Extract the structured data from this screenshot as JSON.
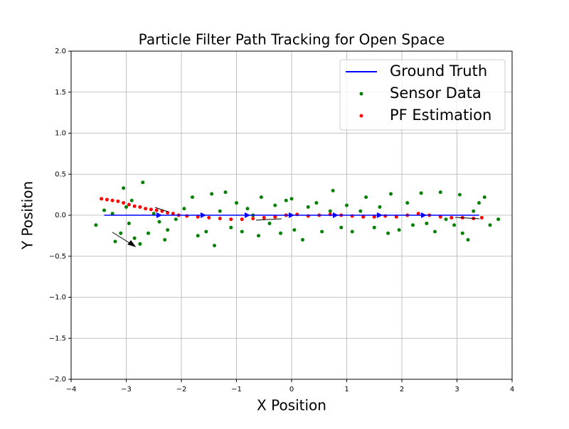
{
  "chart_data": {
    "type": "scatter",
    "title": "Particle Filter Path Tracking for Open Space",
    "x_label": "X Position",
    "y_label": "Y Position",
    "xlim": [
      -4,
      4
    ],
    "ylim": [
      -2,
      2
    ],
    "xticks": [
      {
        "value": -4,
        "label": "−4"
      },
      {
        "value": -3,
        "label": "−3"
      },
      {
        "value": -2,
        "label": "−2"
      },
      {
        "value": -1,
        "label": "−1"
      },
      0,
      1,
      2,
      3,
      4
    ],
    "yticks": [
      {
        "value": -2,
        "label": "−2.0"
      },
      {
        "value": -1.5,
        "label": "−1.5"
      },
      {
        "value": -1,
        "label": "−1.0"
      },
      {
        "value": -0.5,
        "label": "−0.5"
      },
      {
        "value": 0,
        "label": "0.0"
      },
      {
        "value": 0.5,
        "label": "0.5"
      },
      {
        "value": 1,
        "label": "1.0"
      },
      {
        "value": 1.5,
        "label": "1.5"
      },
      {
        "value": 2,
        "label": "2.0"
      }
    ],
    "grid": true,
    "legend": "upper right",
    "series": [
      {
        "name": "Ground Truth",
        "type": "line",
        "color": "#0000ff",
        "x": [
          -3.4,
          -2.4,
          -1.6,
          -0.8,
          0,
          0.8,
          1.6,
          2.4,
          3.4
        ],
        "values": [
          0,
          0,
          0,
          0,
          0,
          0,
          0,
          0,
          0
        ]
      },
      {
        "name": "Sensor Data",
        "type": "scatter",
        "color": "#008000",
        "x": [
          -3.55,
          -3.4,
          -3.25,
          -3.2,
          -3.1,
          -3.05,
          -3.0,
          -2.95,
          -2.9,
          -2.85,
          -2.75,
          -2.7,
          -2.6,
          -2.5,
          -2.4,
          -2.3,
          -2.25,
          -2.1,
          -1.95,
          -1.8,
          -1.7,
          -1.55,
          -1.45,
          -1.4,
          -1.3,
          -1.2,
          -1.1,
          -1.0,
          -0.9,
          -0.8,
          -0.7,
          -0.6,
          -0.55,
          -0.4,
          -0.3,
          -0.2,
          -0.1,
          0.0,
          0.05,
          0.2,
          0.3,
          0.45,
          0.55,
          0.7,
          0.75,
          0.9,
          1.0,
          1.1,
          1.25,
          1.35,
          1.5,
          1.6,
          1.75,
          1.8,
          1.95,
          2.1,
          2.2,
          2.35,
          2.45,
          2.6,
          2.7,
          2.8,
          2.95,
          3.05,
          3.1,
          3.2,
          3.3,
          3.4,
          3.5,
          3.6,
          3.75
        ],
        "values": [
          -0.12,
          0.06,
          0.02,
          -0.32,
          -0.22,
          0.33,
          0.1,
          -0.1,
          0.18,
          -0.28,
          -0.35,
          0.4,
          -0.22,
          0.02,
          -0.08,
          -0.3,
          -0.18,
          -0.05,
          0.08,
          0.22,
          -0.25,
          -0.2,
          0.26,
          -0.37,
          0.05,
          0.28,
          -0.15,
          0.15,
          -0.2,
          0.08,
          0.0,
          -0.25,
          0.22,
          -0.1,
          0.12,
          -0.22,
          0.18,
          0.2,
          -0.18,
          -0.3,
          0.1,
          0.15,
          -0.2,
          0.05,
          0.3,
          -0.15,
          0.12,
          -0.2,
          0.05,
          0.22,
          -0.15,
          0.1,
          -0.22,
          0.26,
          -0.18,
          0.15,
          -0.12,
          0.27,
          -0.1,
          -0.2,
          0.28,
          -0.05,
          -0.12,
          0.25,
          -0.22,
          -0.3,
          0.05,
          0.15,
          0.22,
          -0.12,
          -0.05
        ]
      },
      {
        "name": "PF Estimation",
        "type": "scatter",
        "color": "#ff0000",
        "x": [
          -3.45,
          -3.35,
          -3.25,
          -3.15,
          -3.05,
          -2.95,
          -2.85,
          -2.75,
          -2.65,
          -2.55,
          -2.45,
          -2.35,
          -2.25,
          -2.15,
          -2.05,
          -1.9,
          -1.7,
          -1.5,
          -1.3,
          -1.1,
          -0.9,
          -0.7,
          -0.5,
          -0.3,
          -0.1,
          0.1,
          0.3,
          0.5,
          0.7,
          0.9,
          1.1,
          1.3,
          1.5,
          1.7,
          1.9,
          2.1,
          2.3,
          2.5,
          2.7,
          2.9,
          3.1,
          3.3,
          3.45
        ],
        "values": [
          0.2,
          0.19,
          0.18,
          0.17,
          0.15,
          0.13,
          0.11,
          0.1,
          0.08,
          0.07,
          0.06,
          0.05,
          0.03,
          0.02,
          0.0,
          -0.01,
          -0.02,
          -0.03,
          -0.04,
          -0.05,
          -0.05,
          -0.04,
          -0.03,
          -0.02,
          0.0,
          0.01,
          -0.01,
          0.0,
          0.01,
          0.0,
          -0.01,
          -0.02,
          -0.02,
          -0.01,
          -0.02,
          0.0,
          0.02,
          0.0,
          -0.02,
          -0.03,
          -0.03,
          -0.04,
          -0.03
        ]
      }
    ]
  }
}
